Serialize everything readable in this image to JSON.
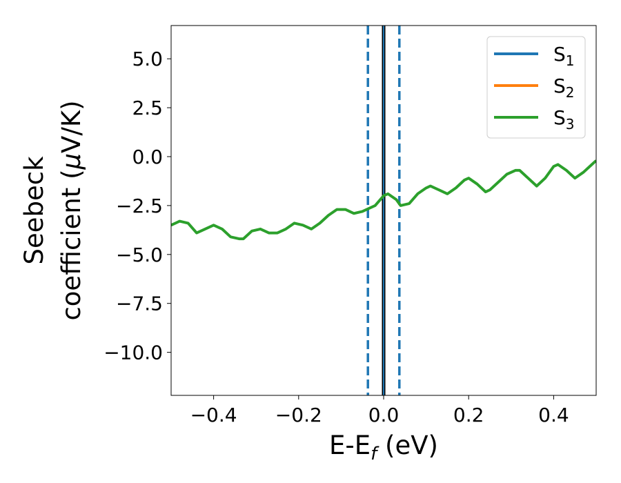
{
  "chart_data": {
    "type": "line",
    "title": "",
    "xlabel": {
      "main": "E-E",
      "sub": "f",
      "unit": " (eV)"
    },
    "ylabel": {
      "line1": "Seebeck",
      "line2_prefix": "coefficient  (",
      "mu": "μ",
      "line2_suffix": "V/K)"
    },
    "xlim": [
      -0.5,
      0.5
    ],
    "ylim": [
      -12.2,
      6.7
    ],
    "xticks": [
      -0.4,
      -0.2,
      0.0,
      0.2,
      0.4
    ],
    "xtick_labels": [
      "−0.4",
      "−0.2",
      "0.0",
      "0.2",
      "0.4"
    ],
    "yticks": [
      5.0,
      2.5,
      0.0,
      -2.5,
      -5.0,
      -7.5,
      -10.0
    ],
    "ytick_labels": [
      "5.0",
      "2.5",
      "0.0",
      "−2.5",
      "−5.0",
      "−7.5",
      "−10.0"
    ],
    "grid": false,
    "legend_position": "top-right",
    "series": [
      {
        "name": "S",
        "sub": "1",
        "color": "#1f77b4",
        "x": [],
        "y": []
      },
      {
        "name": "S",
        "sub": "2",
        "color": "#ff7f0e",
        "x": [],
        "y": []
      },
      {
        "name": "S",
        "sub": "3",
        "color": "#2ca02c",
        "x": [
          -0.5,
          -0.48,
          -0.46,
          -0.44,
          -0.42,
          -0.4,
          -0.38,
          -0.36,
          -0.34,
          -0.33,
          -0.31,
          -0.29,
          -0.27,
          -0.25,
          -0.23,
          -0.21,
          -0.19,
          -0.17,
          -0.15,
          -0.13,
          -0.11,
          -0.09,
          -0.07,
          -0.05,
          -0.04,
          -0.02,
          0.0,
          0.01,
          0.03,
          0.04,
          0.06,
          0.08,
          0.1,
          0.11,
          0.13,
          0.15,
          0.17,
          0.19,
          0.2,
          0.22,
          0.24,
          0.25,
          0.27,
          0.29,
          0.31,
          0.32,
          0.34,
          0.36,
          0.38,
          0.4,
          0.41,
          0.43,
          0.45,
          0.47,
          0.49,
          0.5
        ],
        "y": [
          -3.5,
          -3.3,
          -3.4,
          -3.9,
          -3.7,
          -3.5,
          -3.7,
          -4.1,
          -4.2,
          -4.2,
          -3.8,
          -3.7,
          -3.9,
          -3.9,
          -3.7,
          -3.4,
          -3.5,
          -3.7,
          -3.4,
          -3.0,
          -2.7,
          -2.7,
          -2.9,
          -2.8,
          -2.7,
          -2.5,
          -2.0,
          -1.9,
          -2.2,
          -2.5,
          -2.4,
          -1.9,
          -1.6,
          -1.5,
          -1.7,
          -1.9,
          -1.6,
          -1.2,
          -1.1,
          -1.4,
          -1.8,
          -1.7,
          -1.3,
          -0.9,
          -0.7,
          -0.7,
          -1.1,
          -1.5,
          -1.1,
          -0.5,
          -0.4,
          -0.7,
          -1.1,
          -0.8,
          -0.4,
          -0.2
        ]
      }
    ],
    "vlines": [
      {
        "x": 0.0,
        "style": "solid",
        "color": "#000000"
      },
      {
        "x": 0.0,
        "style": "solid",
        "color": "#1f77b4"
      },
      {
        "x": -0.037,
        "style": "dashed",
        "color": "#1f77b4"
      },
      {
        "x": 0.037,
        "style": "dashed",
        "color": "#1f77b4"
      }
    ]
  }
}
